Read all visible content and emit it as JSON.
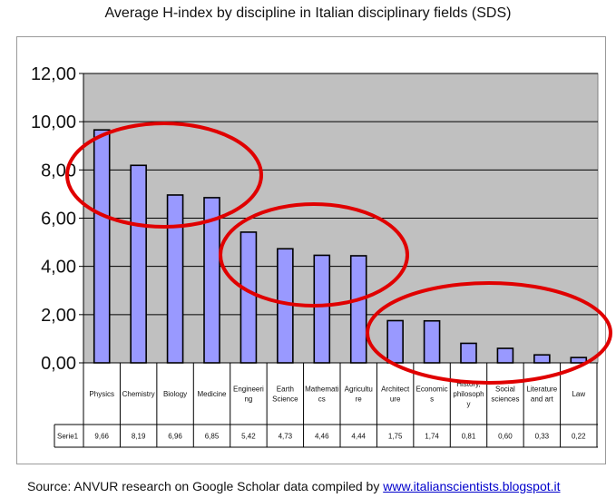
{
  "title": "Average H-index by discipline in Italian disciplinary fields (SDS)",
  "source": {
    "text": "Source: ANVUR research on Google Scholar data compiled by ",
    "link": "www.italianscientists.blogspot.it"
  },
  "colors": {
    "plot_bg": "#c0c0c0",
    "bar_fill": "#9999ff",
    "bar_stroke": "#000000",
    "ellipse": "#e00000"
  },
  "chart_data": {
    "type": "bar",
    "title": "Average H-index by discipline in Italian disciplinary fields (SDS)",
    "xlabel": "",
    "ylabel": "",
    "ylim": [
      0,
      12
    ],
    "yticks": [
      "0,00",
      "2,00",
      "4,00",
      "6,00",
      "8,00",
      "10,00",
      "12,00"
    ],
    "grid": true,
    "categories": [
      [
        "Physics"
      ],
      [
        "Chemistry"
      ],
      [
        "Biology"
      ],
      [
        "Medicine"
      ],
      [
        "Engineeri",
        "ng"
      ],
      [
        "Earth",
        "Science"
      ],
      [
        "Mathemati",
        "cs"
      ],
      [
        "Agricultu",
        "re"
      ],
      [
        "Architect",
        "ure"
      ],
      [
        "Economic",
        "s"
      ],
      [
        "History,",
        "philosoph",
        "y"
      ],
      [
        "Social",
        "sciences"
      ],
      [
        "Literature",
        "and art"
      ],
      [
        "Law"
      ]
    ],
    "series": [
      {
        "name": "Serie1",
        "values": [
          9.66,
          8.19,
          6.96,
          6.85,
          5.42,
          4.73,
          4.46,
          4.44,
          1.75,
          1.74,
          0.81,
          0.6,
          0.33,
          0.22
        ],
        "labels": [
          "9,66",
          "8,19",
          "6,96",
          "6,85",
          "5,42",
          "4,73",
          "4,46",
          "4,44",
          "1,75",
          "1,74",
          "0,81",
          "0,60",
          "0,33",
          "0,22"
        ]
      }
    ],
    "annotations": [
      {
        "type": "ellipse",
        "covers": [
          "Physics",
          "Chemistry",
          "Biology",
          "Medicine"
        ]
      },
      {
        "type": "ellipse",
        "covers": [
          "Engineering",
          "Earth Science",
          "Mathematics",
          "Agriculture"
        ]
      },
      {
        "type": "ellipse",
        "covers": [
          "Architecture",
          "Economics",
          "History, philosophy",
          "Social sciences",
          "Literature and art",
          "Law"
        ]
      }
    ]
  }
}
